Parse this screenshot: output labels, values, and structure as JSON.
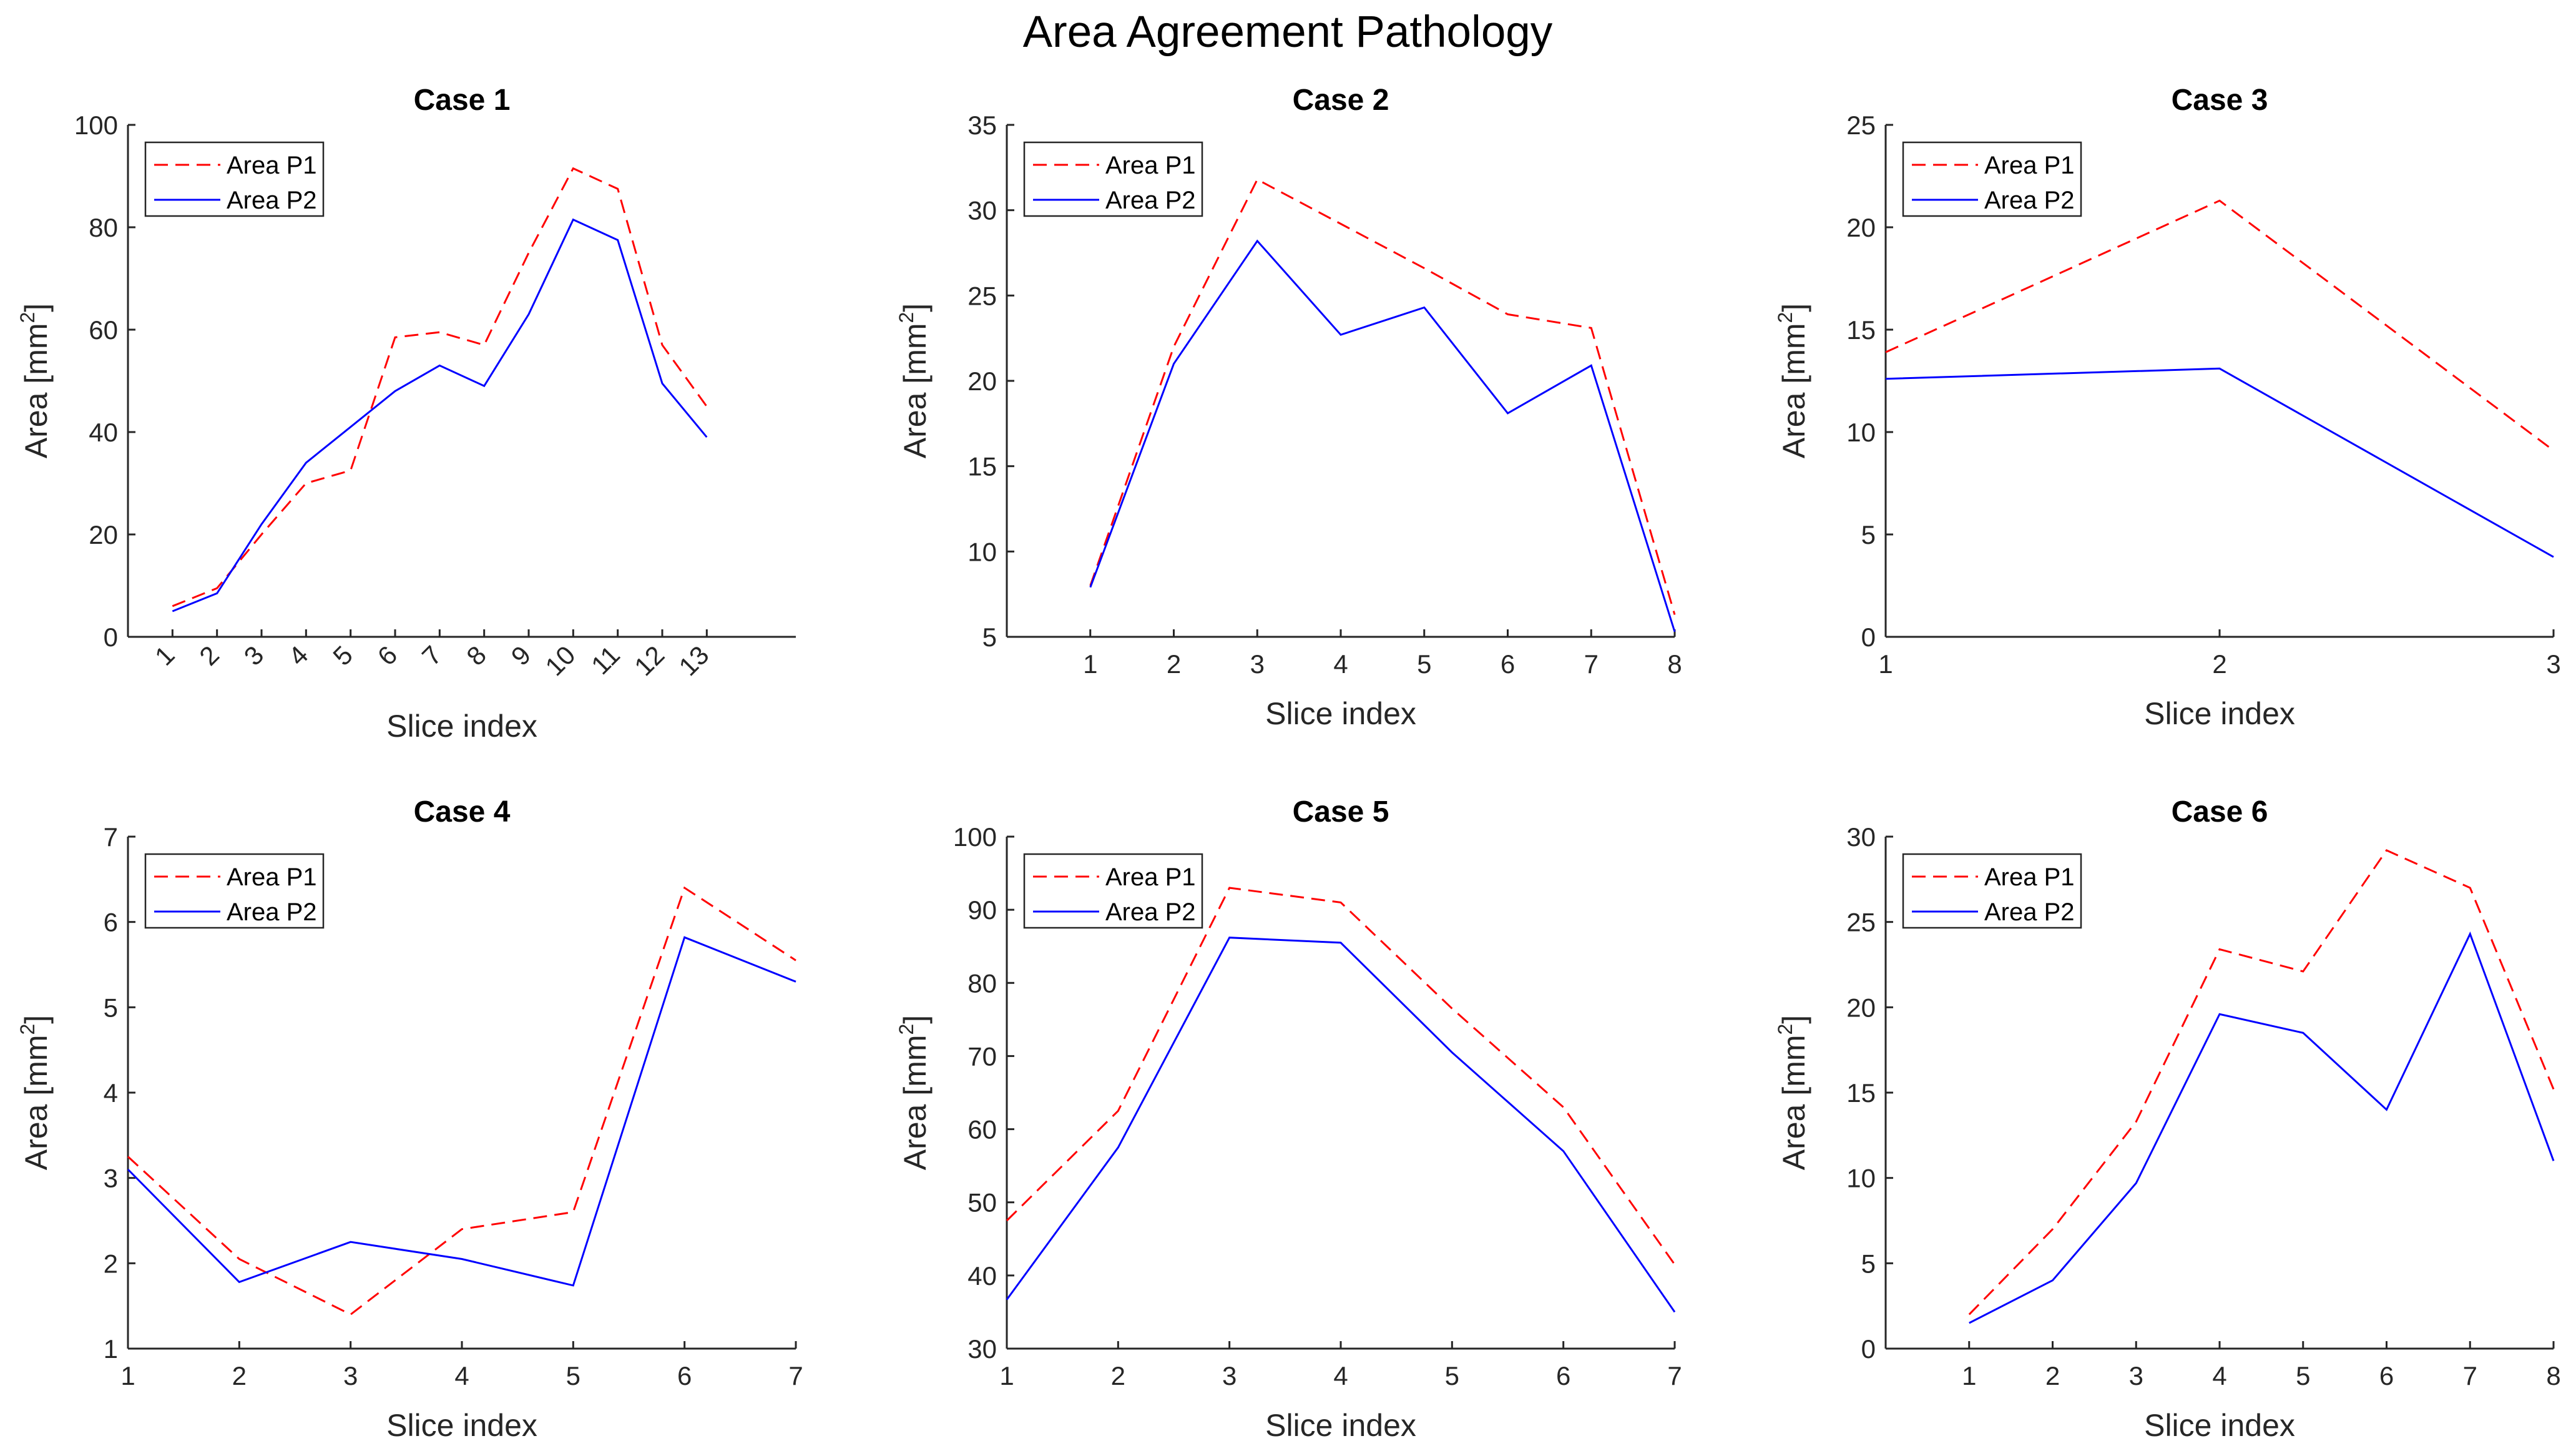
{
  "figure": {
    "title": "Area Agreement Pathology"
  },
  "colors": {
    "p1": "#ff0000",
    "p2": "#0000ff",
    "axis": "#262626"
  },
  "chart_data": [
    {
      "type": "line",
      "title": "Case 1",
      "xlabel": "Slice index",
      "ylabel": "Area [mm2]",
      "xlim": [
        0,
        15
      ],
      "ylim": [
        0,
        100
      ],
      "xticks": [
        1,
        2,
        3,
        4,
        5,
        6,
        7,
        8,
        9,
        10,
        11,
        12,
        13
      ],
      "yticks": [
        0,
        20,
        40,
        60,
        80,
        100
      ],
      "xtick_rotation": "rotated",
      "legend_position": "top-left",
      "x": [
        1,
        2,
        3,
        4,
        5,
        6,
        7,
        8,
        9,
        10,
        11,
        12,
        13
      ],
      "series": [
        {
          "name": "Area P1",
          "style": "dashed",
          "values": [
            6,
            9.5,
            20,
            30,
            32.5,
            58.5,
            59.5,
            57,
            75,
            91.5,
            87.5,
            57,
            45
          ]
        },
        {
          "name": "Area P2",
          "style": "solid",
          "values": [
            5,
            8.5,
            22,
            34,
            41,
            48,
            53,
            49,
            63,
            81.5,
            77.5,
            49.5,
            39
          ]
        }
      ]
    },
    {
      "type": "line",
      "title": "Case 2",
      "xlabel": "Slice index",
      "ylabel": "Area [mm2]",
      "xlim": [
        0,
        8
      ],
      "ylim": [
        5,
        35
      ],
      "xticks": [
        1,
        2,
        3,
        4,
        5,
        6,
        7,
        8
      ],
      "yticks": [
        5,
        10,
        15,
        20,
        25,
        30,
        35
      ],
      "legend_position": "top-left",
      "x": [
        1,
        2,
        3,
        4,
        5,
        6,
        7,
        8
      ],
      "series": [
        {
          "name": "Area P1",
          "style": "dashed",
          "values": [
            8,
            22,
            31.8,
            29.2,
            26.6,
            23.9,
            23.1,
            6.3
          ]
        },
        {
          "name": "Area P2",
          "style": "solid",
          "values": [
            7.9,
            21,
            28.2,
            22.7,
            24.3,
            18.1,
            20.9,
            5.3
          ]
        }
      ]
    },
    {
      "type": "line",
      "title": "Case 3",
      "xlabel": "Slice index",
      "ylabel": "Area [mm2]",
      "xlim": [
        1,
        3
      ],
      "ylim": [
        0,
        25
      ],
      "xticks": [
        1,
        2,
        3
      ],
      "yticks": [
        0,
        5,
        10,
        15,
        20,
        25
      ],
      "legend_position": "top-left",
      "x": [
        1,
        2,
        3
      ],
      "series": [
        {
          "name": "Area P1",
          "style": "dashed",
          "values": [
            13.9,
            21.3,
            9.1
          ]
        },
        {
          "name": "Area P2",
          "style": "solid",
          "values": [
            12.6,
            13.1,
            3.9
          ]
        }
      ]
    },
    {
      "type": "line",
      "title": "Case 4",
      "xlabel": "Slice index",
      "ylabel": "Area [mm2]",
      "xlim": [
        1,
        7
      ],
      "ylim": [
        1,
        7
      ],
      "xticks": [
        1,
        2,
        3,
        4,
        5,
        6,
        7
      ],
      "yticks": [
        1,
        2,
        3,
        4,
        5,
        6,
        7
      ],
      "legend_position": "top-left",
      "x": [
        1,
        2,
        3,
        4,
        5,
        6,
        7
      ],
      "series": [
        {
          "name": "Area P1",
          "style": "dashed",
          "values": [
            3.25,
            2.05,
            1.4,
            2.4,
            2.6,
            6.4,
            5.55
          ]
        },
        {
          "name": "Area P2",
          "style": "solid",
          "values": [
            3.1,
            1.78,
            2.25,
            2.05,
            1.74,
            5.82,
            5.3
          ]
        }
      ]
    },
    {
      "type": "line",
      "title": "Case 5",
      "xlabel": "Slice index",
      "ylabel": "Area [mm2]",
      "xlim": [
        1,
        7
      ],
      "ylim": [
        30,
        100
      ],
      "xticks": [
        1,
        2,
        3,
        4,
        5,
        6,
        7
      ],
      "yticks": [
        30,
        40,
        50,
        60,
        70,
        80,
        90,
        100
      ],
      "legend_position": "top-left",
      "x": [
        1,
        2,
        3,
        4,
        5,
        6,
        7
      ],
      "series": [
        {
          "name": "Area P1",
          "style": "dashed",
          "values": [
            47.5,
            62.5,
            93,
            91,
            76.5,
            63,
            41.5
          ]
        },
        {
          "name": "Area P2",
          "style": "solid",
          "values": [
            36.7,
            57.5,
            86.2,
            85.5,
            70.5,
            57,
            35
          ]
        }
      ]
    },
    {
      "type": "line",
      "title": "Case 6",
      "xlabel": "Slice index",
      "ylabel": "Area [mm2]",
      "xlim": [
        0,
        8
      ],
      "ylim": [
        0,
        30
      ],
      "xticks": [
        1,
        2,
        3,
        4,
        5,
        6,
        7,
        8
      ],
      "yticks": [
        0,
        5,
        10,
        15,
        20,
        25,
        30
      ],
      "legend_position": "top-left",
      "x": [
        1,
        2,
        3,
        4,
        5,
        6,
        7,
        8
      ],
      "series": [
        {
          "name": "Area P1",
          "style": "dashed",
          "values": [
            2,
            7,
            13.3,
            23.4,
            22.1,
            29.2,
            27,
            15.2
          ]
        },
        {
          "name": "Area P2",
          "style": "solid",
          "values": [
            1.5,
            4,
            9.7,
            19.6,
            18.5,
            14,
            24.3,
            11
          ]
        }
      ]
    }
  ]
}
